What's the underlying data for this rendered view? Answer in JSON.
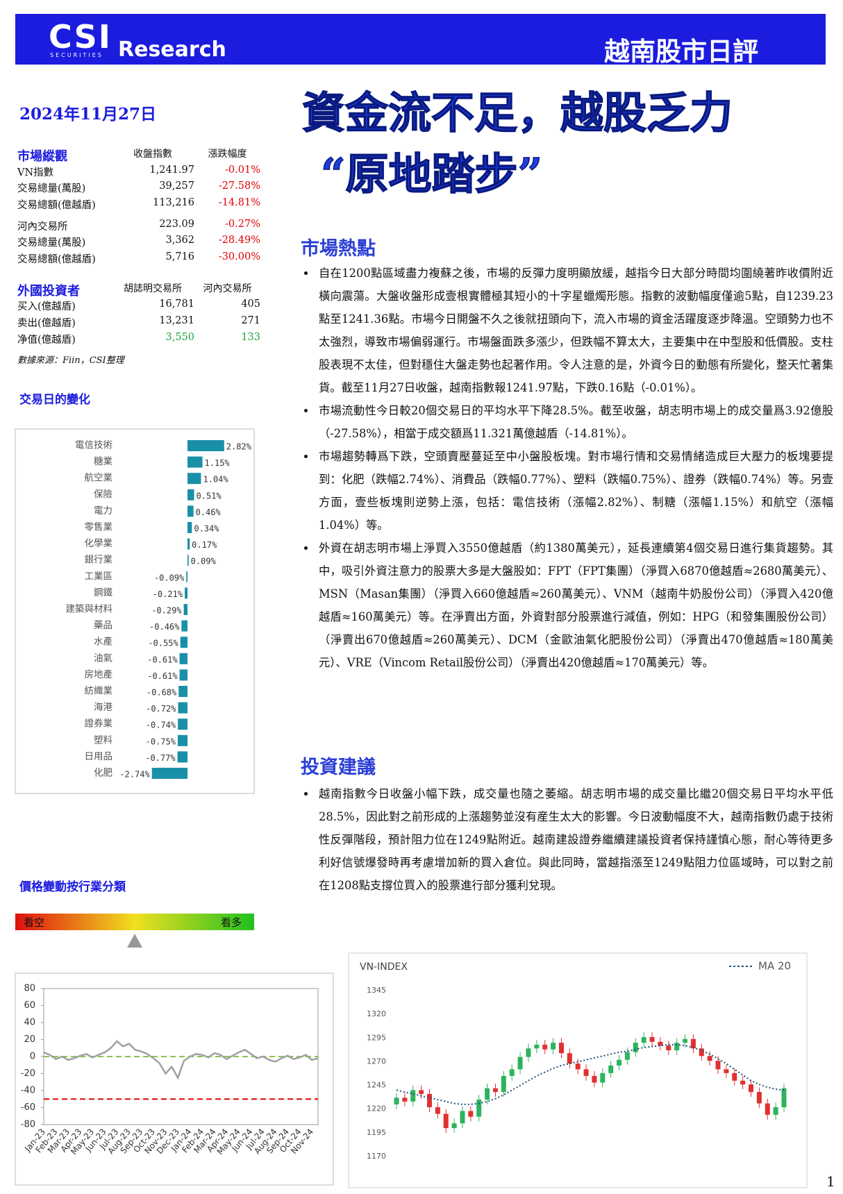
{
  "header": {
    "logo": "CSI",
    "logo_sub": "SECURITIES",
    "brand": "Research",
    "title": "越南股市日評"
  },
  "date": "2024年11月27日",
  "headline": [
    "資金流不足，越股乏力",
    "“原地踏步”"
  ],
  "market": {
    "header": [
      "市場縱觀",
      "收盤指數",
      "漲跌幅度"
    ],
    "rows": [
      [
        "VN指數",
        "1,241.97",
        "-0.01%"
      ],
      [
        "交易總量(萬股)",
        "39,257",
        "-27.58%"
      ],
      [
        "交易總額(億越盾)",
        "113,216",
        "-14.81%"
      ],
      [
        "河內交易所",
        "223.09",
        "-0.27%"
      ],
      [
        "交易總量(萬股)",
        "3,362",
        "-28.49%"
      ],
      [
        "交易總額(億越盾)",
        "5,716",
        "-30.00%"
      ]
    ]
  },
  "foreign": {
    "header": [
      "外國投資者",
      "胡誌明交易所",
      "河內交易所"
    ],
    "rows": [
      [
        "买入(億越盾)",
        "16,781",
        "405"
      ],
      [
        "卖出(億越盾)",
        "13,231",
        "271"
      ],
      [
        "净值(億越盾)",
        "3,550",
        "133"
      ]
    ]
  },
  "source": "數據來源：Fiin，CSI整理",
  "hot": {
    "heading": "市場熱點",
    "bullets": [
      "自在1200點區域盡力複蘇之後，市場的反彈力度明顯放緩，越指今日大部分時間均圍繞著昨收價附近橫向震蕩。大盤收盤形成壹根實體極其短小的十字星蠟燭形態。指數的波動幅度僅逾5點，自1239.23點至1241.36點。市場今日開盤不久之後就扭頭向下，流入市場的資金活躍度逐步降溫。空頭勢力也不太強烈，導致市場偏弱運行。市場盤面跌多漲少，但跌幅不算太大，主要集中在中型股和低價股。支柱股表現不太佳，但對穩住大盤走勢也起著作用。令人注意的是，外資今日的動態有所變化，整天忙著集貨。截至11月27日收盤，越南指數報1241.97點，下跌0.16點（-0.01%）。",
      "市場流動性今日較20個交易日的平均水平下降28.5%。截至收盤，胡志明市場上的成交量爲3.92億股（-27.58%），相當于成交額爲11.321萬億越盾（-14.81%）。",
      "市場趨勢轉爲下跌，空頭賣壓蔓延至中小盤股板塊。對市場行情和交易情緒造成巨大壓力的板塊要提到：化肥（跌幅2.74%）、消費品（跌幅0.77%）、塑料（跌幅0.75%）、證券（跌幅0.74%）等。另壹方面，壹些板塊則逆勢上漲，包括：電信技術（漲幅2.82%）、制糖（漲幅1.15%）和航空（漲幅1.04%）等。",
      "外資在胡志明市場上淨買入3550億越盾（約1380萬美元），延長連續第4個交易日進行集貨趨勢。其中，吸引外資注意力的股票大多是大盤股如：FPT（FPT集團）（淨買入6870億越盾≈2680萬美元）、MSN（Masan集團）（淨買入660億越盾≈260萬美元）、VNM（越南牛奶股份公司）（淨買入420億越盾≈160萬美元）等。在淨賣出方面，外資對部分股票進行減值，例如：HPG（和發集團股份公司）（淨賣出670億越盾≈260萬美元）、DCM（金歐油氣化肥股份公司）（淨賣出470億越盾≈180萬美元）、VRE（Vincom Retail股份公司）（淨賣出420億越盾≈170萬美元）等。"
    ]
  },
  "advice": {
    "heading": "投資建議",
    "bullets": [
      "越南指數今日收盤小幅下跌，成交量也隨之萎縮。胡志明市場的成交量比繼20個交易日平均水平低28.5%，因此對之前形成的上漲趨勢並沒有産生太大的影響。今日波動幅度不大，越南指數仍處于技術性反彈階段，預計阻力位在1249點附近。越南建設證券繼續建議投資者保持謹慎心態，耐心等待更多利好信號爆發時再考慮增加新的買入倉位。與此同時，當越指漲至1249點阻力位區域時，可以對之前在1208點支撐位買入的股票進行部分獲利兌現。"
    ]
  },
  "page_number": "1",
  "chart_data": [
    {
      "type": "hbar",
      "title": "交易日的變化",
      "color": "#1a8fa8",
      "categories": [
        "電信技術",
        "糖業",
        "航空業",
        "保險",
        "電力",
        "零售業",
        "化學業",
        "銀行業",
        "工業區",
        "鋼鐵",
        "建築與材料",
        "藥品",
        "水產",
        "油氣",
        "房地產",
        "紡織業",
        "海港",
        "證券業",
        "塑料",
        "日用品",
        "化肥"
      ],
      "values": [
        2.82,
        1.15,
        1.04,
        0.51,
        0.46,
        0.34,
        0.17,
        0.09,
        -0.09,
        -0.21,
        -0.29,
        -0.46,
        -0.55,
        -0.61,
        -0.61,
        -0.68,
        -0.72,
        -0.74,
        -0.75,
        -0.77,
        -2.74
      ],
      "value_labels": [
        "2.82%",
        "1.15%",
        "1.04%",
        "0.51%",
        "0.46%",
        "0.34%",
        "0.17%",
        "0.09%",
        "-0.09%",
        "-0.21%",
        "-0.29%",
        "-0.46%",
        "-0.55%",
        "-0.61%",
        "-0.61%",
        "-0.68%",
        "-0.72%",
        "-0.74%",
        "-0.75%",
        "-0.77%",
        "-2.74%"
      ]
    },
    {
      "type": "line",
      "title": "價格變動按行業分類",
      "gauge_labels": [
        "看空",
        "看多"
      ],
      "color": "#a0a0a0",
      "categories": [
        "Jan-23",
        null,
        "Feb-23",
        null,
        "Mar-23",
        null,
        "Apr-23",
        null,
        "May-23",
        null,
        "Jun-23",
        null,
        "Jul-23",
        null,
        "Aug-23",
        null,
        "Sep-23",
        null,
        "Oct-23",
        null,
        "Nov-23",
        null,
        "Dec-23",
        null,
        "Jan-24",
        null,
        "Feb-24",
        null,
        "Mar-24",
        null,
        "Apr-24",
        null,
        "May-24",
        null,
        "Jun-24",
        null,
        "Jul-24",
        null,
        "Aug-24",
        null,
        "Sep-24",
        null,
        "Oct-24",
        null,
        "Nov-24",
        null
      ],
      "values": [
        5,
        2,
        -3,
        0,
        -4,
        -2,
        1,
        3,
        -1,
        2,
        5,
        10,
        18,
        12,
        15,
        8,
        6,
        3,
        -2,
        -8,
        -20,
        -12,
        -25,
        -5,
        0,
        3,
        2,
        -1,
        4,
        2,
        -3,
        1,
        5,
        8,
        3,
        -2,
        0,
        -4,
        -6,
        -2,
        1,
        -3,
        -1,
        2,
        -4,
        -2
      ],
      "reference_lines": [
        {
          "value": 0,
          "color": "#8bc34a"
        },
        {
          "value": -50,
          "color": "#e00000"
        }
      ],
      "ylim": [
        -80,
        80
      ],
      "yticks": [
        80,
        60,
        40,
        20,
        0,
        -20,
        -40,
        -60,
        -80
      ]
    },
    {
      "type": "candlestick",
      "title": "VN-INDEX",
      "up_color": "#2db35d",
      "down_color": "#e03030",
      "open": [
        1225,
        1232,
        1228,
        1240,
        1236,
        1222,
        1215,
        1200,
        1205,
        1218,
        1212,
        1230,
        1242,
        1238,
        1255,
        1262,
        1275,
        1284,
        1288,
        1283,
        1290,
        1279,
        1268,
        1262,
        1255,
        1248,
        1258,
        1266,
        1272,
        1280,
        1290,
        1296,
        1291,
        1287,
        1282,
        1290,
        1294,
        1284,
        1276,
        1271,
        1262,
        1258,
        1250,
        1246,
        1238,
        1226,
        1214,
        1222
      ],
      "high": [
        1237,
        1237,
        1245,
        1245,
        1241,
        1227,
        1220,
        1210,
        1223,
        1223,
        1235,
        1247,
        1247,
        1260,
        1267,
        1280,
        1289,
        1293,
        1293,
        1295,
        1295,
        1284,
        1273,
        1267,
        1260,
        1263,
        1271,
        1277,
        1285,
        1295,
        1301,
        1301,
        1296,
        1292,
        1295,
        1299,
        1299,
        1289,
        1281,
        1276,
        1267,
        1263,
        1255,
        1251,
        1243,
        1231,
        1227,
        1247
      ],
      "low": [
        1220,
        1223,
        1223,
        1231,
        1217,
        1210,
        1195,
        1195,
        1200,
        1207,
        1207,
        1225,
        1233,
        1233,
        1250,
        1257,
        1270,
        1279,
        1278,
        1278,
        1274,
        1263,
        1257,
        1250,
        1243,
        1243,
        1253,
        1261,
        1267,
        1275,
        1285,
        1286,
        1282,
        1277,
        1277,
        1285,
        1279,
        1271,
        1266,
        1257,
        1253,
        1245,
        1241,
        1233,
        1221,
        1209,
        1209,
        1217
      ],
      "close": [
        1232,
        1228,
        1240,
        1236,
        1222,
        1215,
        1200,
        1205,
        1218,
        1212,
        1230,
        1242,
        1238,
        1255,
        1262,
        1275,
        1284,
        1288,
        1283,
        1290,
        1279,
        1268,
        1262,
        1255,
        1248,
        1258,
        1266,
        1272,
        1280,
        1290,
        1296,
        1291,
        1287,
        1282,
        1290,
        1294,
        1284,
        1276,
        1271,
        1262,
        1258,
        1250,
        1246,
        1238,
        1226,
        1214,
        1222,
        1242
      ],
      "ma": {
        "name": "MA 20",
        "color": "#1f4e79",
        "values": [
          1240,
          1238,
          1236,
          1234,
          1232,
          1230,
          1228,
          1226,
          1225,
          1225,
          1226,
          1228,
          1231,
          1235,
          1240,
          1245,
          1250,
          1255,
          1259,
          1263,
          1266,
          1268,
          1270,
          1272,
          1274,
          1276,
          1278,
          1280,
          1281,
          1283,
          1285,
          1286,
          1287,
          1288,
          1288,
          1287,
          1285,
          1282,
          1278,
          1273,
          1268,
          1262,
          1256,
          1250,
          1246,
          1243,
          1241,
          1240
        ]
      },
      "ylim": [
        1170,
        1345
      ],
      "yticks": [
        1345,
        1320,
        1295,
        1270,
        1245,
        1220,
        1195,
        1170
      ]
    }
  ]
}
